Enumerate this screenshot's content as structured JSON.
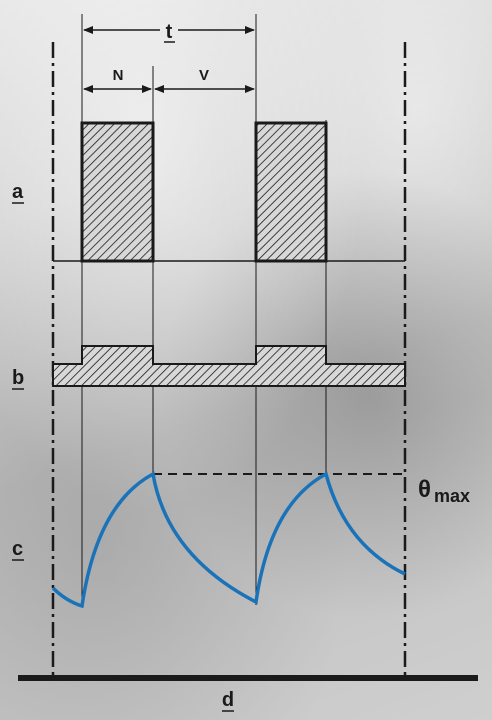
{
  "labels": {
    "a": "a",
    "b": "b",
    "c": "c",
    "d": "d",
    "t": "t",
    "N": "N",
    "V": "V",
    "theta": "θ",
    "theta_subscript": "max"
  },
  "colors": {
    "curve": "#1a73b8",
    "ink": "#1a1a1a"
  }
}
